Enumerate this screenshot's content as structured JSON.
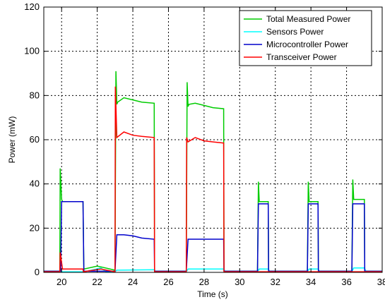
{
  "chart_data": {
    "type": "line",
    "title": "",
    "xlabel": "Time (s)",
    "ylabel": "Power (mW)",
    "xlim": [
      19,
      38
    ],
    "ylim": [
      0,
      120
    ],
    "xticks": [
      20,
      22,
      24,
      26,
      28,
      30,
      32,
      34,
      36,
      38
    ],
    "xtick_labels": [
      "20",
      "22",
      "24",
      "26",
      "28",
      "30",
      "32",
      "34",
      "36",
      "38"
    ],
    "yticks": [
      0,
      20,
      40,
      60,
      80,
      100,
      120
    ],
    "ytick_labels": [
      "0",
      "20",
      "40",
      "60",
      "80",
      "100",
      "120"
    ],
    "grid": true,
    "legend_position": "top-right",
    "series": [
      {
        "name": "Total Measured Power",
        "color": "#00cc00",
        "x": [
          19,
          19.9,
          19.92,
          20.0,
          20.05,
          21.2,
          21.25,
          22.0,
          22.2,
          23.0,
          23.05,
          23.1,
          23.15,
          23.5,
          24.0,
          24.5,
          25.2,
          25.22,
          27.0,
          27.05,
          27.1,
          27.15,
          27.5,
          28.0,
          28.5,
          29.1,
          29.12,
          31.0,
          31.05,
          31.1,
          31.6,
          31.62,
          33.8,
          33.85,
          33.9,
          34.4,
          34.42,
          36.3,
          36.35,
          36.4,
          37.0,
          37.02,
          38
        ],
        "y": [
          0.5,
          0.5,
          47,
          33,
          32,
          32,
          1.5,
          2.8,
          2.5,
          1.0,
          91,
          76,
          77,
          79,
          78,
          77,
          76.5,
          0.5,
          0.5,
          86,
          75,
          76,
          76.5,
          75.5,
          74.5,
          74,
          0.5,
          0.5,
          41,
          32,
          32,
          0.5,
          0.5,
          41,
          32,
          32,
          0.5,
          0.5,
          42,
          33,
          33,
          0.5,
          0.5
        ]
      },
      {
        "name": "Sensors Power",
        "color": "#00ffff",
        "x": [
          19,
          20.0,
          21.2,
          21.3,
          22.2,
          22.5,
          23.0,
          23.1,
          25.2,
          25.3,
          27.0,
          27.1,
          29.1,
          29.2,
          31.0,
          31.1,
          31.6,
          31.7,
          33.8,
          33.9,
          34.4,
          34.5,
          36.3,
          36.4,
          37.0,
          37.1,
          38
        ],
        "y": [
          0.3,
          0.3,
          0.3,
          0.3,
          2.0,
          0.3,
          0.3,
          1.0,
          1.2,
          0.3,
          0.3,
          1.5,
          1.5,
          0.3,
          0.3,
          1.5,
          1.5,
          0.3,
          0.3,
          1.5,
          1.5,
          0.3,
          0.3,
          2.0,
          2.0,
          0.3,
          0.3
        ]
      },
      {
        "name": "Microcontroller Power",
        "color": "#0000cc",
        "x": [
          19,
          19.95,
          20.0,
          21.2,
          21.25,
          22.0,
          23.0,
          23.1,
          23.5,
          24.0,
          24.5,
          25.2,
          25.22,
          27.0,
          27.1,
          28.0,
          29.1,
          29.12,
          31.0,
          31.05,
          31.6,
          31.62,
          33.8,
          33.85,
          34.4,
          34.42,
          36.3,
          36.35,
          37.0,
          37.02,
          38
        ],
        "y": [
          0.5,
          0.5,
          32,
          32,
          0.5,
          0.5,
          0.5,
          17,
          17,
          16.5,
          15.5,
          15,
          0.5,
          0.5,
          15,
          15,
          15,
          0.5,
          0.5,
          31,
          31,
          0.5,
          0.5,
          31,
          31,
          0.5,
          0.5,
          31,
          31,
          0.5,
          0.5
        ]
      },
      {
        "name": "Transceiver Power",
        "color": "#ff0000",
        "x": [
          19,
          19.9,
          19.92,
          20.05,
          21.2,
          21.22,
          22.2,
          23.0,
          23.02,
          23.1,
          23.5,
          24.0,
          24.5,
          25.2,
          25.22,
          27.0,
          27.02,
          27.1,
          27.5,
          28.0,
          28.5,
          29.1,
          29.12,
          31.0,
          31.02,
          31.6,
          33.8,
          34.4,
          36.3,
          37.0,
          38
        ],
        "y": [
          0.3,
          0.3,
          9,
          1.5,
          1.5,
          0.3,
          1.5,
          0.3,
          84,
          61,
          63.5,
          62,
          61.5,
          61,
          0.3,
          0.3,
          61,
          59,
          61,
          59.5,
          59,
          58.5,
          0.3,
          0.3,
          0.3,
          0.3,
          0.3,
          0.3,
          0.3,
          0.3,
          0.3
        ]
      }
    ]
  }
}
